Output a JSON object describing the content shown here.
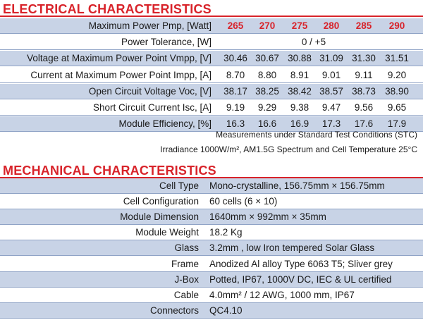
{
  "electrical": {
    "title": "ELECTRICAL CHARACTERISTICS",
    "rows": [
      {
        "label": "Maximum Power Pmp, [Watt]",
        "values": [
          "265",
          "270",
          "275",
          "280",
          "285",
          "290"
        ]
      },
      {
        "label": "Power Tolerance, [W]",
        "span": "0 / +5"
      },
      {
        "label": "Voltage at Maximum Power Point Vmpp, [V]",
        "values": [
          "30.46",
          "30.67",
          "30.88",
          "31.09",
          "31.30",
          "31.51"
        ]
      },
      {
        "label": "Current at Maximum Power Point Impp, [A]",
        "values": [
          "8.70",
          "8.80",
          "8.91",
          "9.01",
          "9.11",
          "9.20"
        ]
      },
      {
        "label": "Open Circuit Voltage Voc, [V]",
        "values": [
          "38.17",
          "38.25",
          "38.42",
          "38.57",
          "38.73",
          "38.90"
        ]
      },
      {
        "label": "Short Circuit Current Isc, [A]",
        "values": [
          "9.19",
          "9.29",
          "9.38",
          "9.47",
          "9.56",
          "9.65"
        ]
      },
      {
        "label": "Module Efficiency, [%]",
        "values": [
          "16.3",
          "16.6",
          "16.9",
          "17.3",
          "17.6",
          "17.9"
        ]
      }
    ],
    "note1": "Measurements under Standard Test Conditions (STC)",
    "note2": "Irradiance 1000W/m², AM1.5G Spectrum and Cell Temperature 25°C"
  },
  "mechanical": {
    "title": "MECHANICAL CHARACTERISTICS",
    "rows": [
      {
        "label": "Cell Type",
        "value": "Mono-crystalline, 156.75mm × 156.75mm"
      },
      {
        "label": "Cell Configuration",
        "value": "60 cells (6 × 10)"
      },
      {
        "label": "Module Dimension",
        "value": "1640mm × 992mm × 35mm"
      },
      {
        "label": "Module Weight",
        "value": "18.2 Kg"
      },
      {
        "label": "Glass",
        "value": "3.2mm , low Iron tempered Solar Glass"
      },
      {
        "label": "Frame",
        "value": "Anodized Al alloy Type 6063 T5; Sliver grey"
      },
      {
        "label": "J-Box",
        "value": "Potted, IP67, 1000V DC, IEC & UL certified"
      },
      {
        "label": "Cable",
        "value": "4.0mm² / 12 AWG, 1000 mm, IP67"
      },
      {
        "label": "Connectors",
        "value": "QC4.10"
      }
    ]
  },
  "colors": {
    "accent": "#d8232a",
    "row_shade": "#c8d3e6"
  }
}
